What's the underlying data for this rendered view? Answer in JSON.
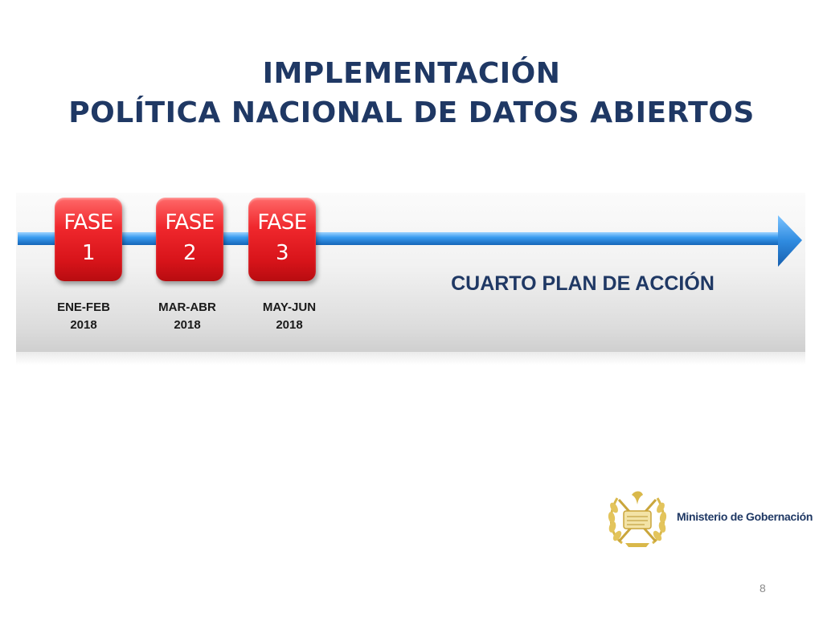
{
  "title": {
    "line1": "IMPLEMENTACIÓN",
    "line2": "POLÍTICA NACIONAL DE DATOS ABIERTOS"
  },
  "phases": [
    {
      "word": "FASE",
      "number": "1",
      "period": "ENE-FEB",
      "year": "2018"
    },
    {
      "word": "FASE",
      "number": "2",
      "period": "MAR-ABR",
      "year": "2018"
    },
    {
      "word": "FASE",
      "number": "3",
      "period": "MAY-JUN",
      "year": "2018"
    }
  ],
  "plan_label": "CUARTO PLAN DE ACCIÓN",
  "logo": {
    "icon": "coat-of-arms-icon",
    "ministry_name": "Ministerio de Gobernación"
  },
  "page_number": "8",
  "colors": {
    "title": "#1f3864",
    "phase_box": "#e8202a",
    "arrow": "#2e8fe0",
    "logo_gold": "#d9b84a"
  }
}
